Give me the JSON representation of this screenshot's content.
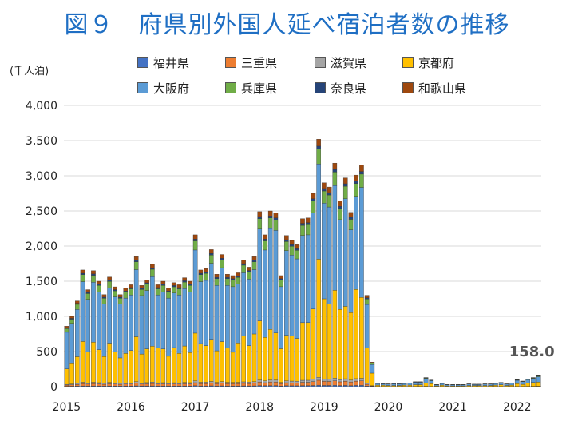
{
  "title": "図９　府県別外国人延べ宿泊者数の推移",
  "chart_data": {
    "type": "bar",
    "stacked": true,
    "unit_label": "(千人泊)",
    "ylim": [
      0,
      4000
    ],
    "yticks": [
      "0",
      "500",
      "1,000",
      "1,500",
      "2,000",
      "2,500",
      "3,000",
      "3,500",
      "4,000"
    ],
    "ytick_values": [
      0,
      500,
      1000,
      1500,
      2000,
      2500,
      3000,
      3500,
      4000
    ],
    "year_labels": [
      "2015",
      "2016",
      "2017",
      "2018",
      "2019",
      "2020",
      "2021",
      "2022"
    ],
    "grid": true,
    "legend_position": "top",
    "last_value_label": "158.0",
    "series": [
      {
        "name": "福井県",
        "color": "#4472c4"
      },
      {
        "name": "三重県",
        "color": "#ed7d31"
      },
      {
        "name": "滋賀県",
        "color": "#a5a5a5"
      },
      {
        "name": "京都府",
        "color": "#ffc000"
      },
      {
        "name": "大阪府",
        "color": "#5b9bd5"
      },
      {
        "name": "兵庫県",
        "color": "#70ad47"
      },
      {
        "name": "奈良県",
        "color": "#264478"
      },
      {
        "name": "和歌山県",
        "color": "#9e480e"
      }
    ],
    "totals": [
      860,
      1000,
      1220,
      1660,
      1380,
      1650,
      1500,
      1310,
      1560,
      1420,
      1310,
      1400,
      1450,
      1850,
      1440,
      1520,
      1740,
      1450,
      1500,
      1400,
      1480,
      1450,
      1550,
      1500,
      2160,
      1660,
      1680,
      1950,
      1600,
      1880,
      1600,
      1580,
      1620,
      1800,
      1700,
      1850,
      2490,
      2160,
      2500,
      2470,
      1580,
      2150,
      2080,
      2020,
      2390,
      2400,
      2750,
      3520,
      2900,
      2840,
      3180,
      2640,
      2970,
      2480,
      3010,
      3150,
      1300,
      350,
      50,
      45,
      40,
      45,
      45,
      50,
      55,
      70,
      70,
      130,
      95,
      30,
      50,
      30,
      30,
      30,
      30,
      40,
      35,
      35,
      40,
      40,
      50,
      60,
      40,
      55,
      100,
      80,
      110,
      130,
      158
    ],
    "kyoto": [
      220,
      290,
      380,
      580,
      440,
      570,
      470,
      380,
      560,
      440,
      360,
      420,
      460,
      640,
      410,
      480,
      510,
      500,
      480,
      380,
      500,
      420,
      520,
      430,
      680,
      550,
      520,
      600,
      450,
      570,
      490,
      430,
      560,
      650,
      520,
      680,
      840,
      620,
      720,
      670,
      480,
      650,
      640,
      610,
      820,
      820,
      1000,
      1680,
      1140,
      1070,
      1250,
      1000,
      1030,
      960,
      1270,
      1150,
      500,
      180,
      20,
      20,
      15,
      15,
      15,
      20,
      20,
      25,
      25,
      50,
      40,
      10,
      20,
      10,
      10,
      10,
      10,
      15,
      15,
      15,
      15,
      15,
      20,
      25,
      15,
      20,
      40,
      30,
      45,
      55,
      60
    ]
  }
}
